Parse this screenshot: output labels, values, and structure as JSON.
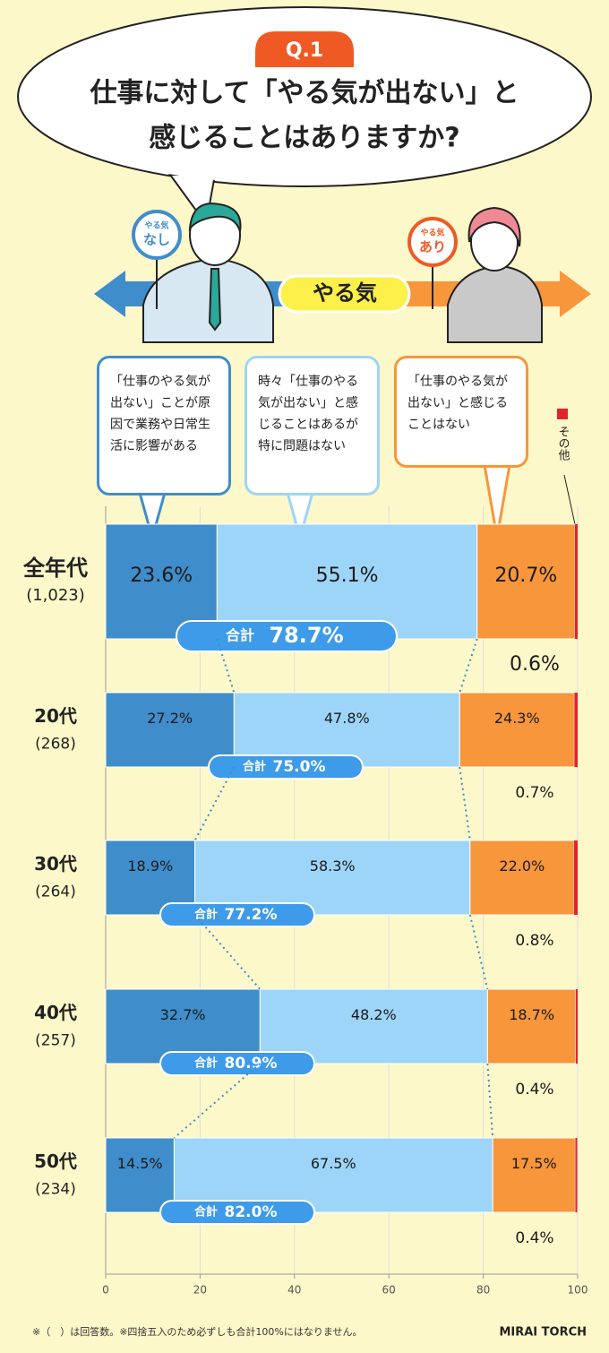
{
  "header": {
    "question": "Q.1",
    "title": [
      "仕事に対して「やる気が出ない」と",
      "感じることはありますか?"
    ]
  },
  "illustration": {
    "arrow_label": "やる気",
    "left_sign": [
      "やる気",
      "なし"
    ],
    "right_sign": [
      "やる気",
      "あり"
    ]
  },
  "chart_data": {
    "type": "stacked-bar-horizontal",
    "categories": [
      "全年代",
      "20代",
      "30代",
      "40代",
      "50代"
    ],
    "sample_sizes": [
      "(1,023)",
      "(268)",
      "(264)",
      "(257)",
      "(234)"
    ],
    "series": [
      {
        "name": "「仕事のやる気が出ない」ことが原因で業務や日常生活に影響がある",
        "color": "#3f8dcb",
        "values": [
          23.6,
          27.2,
          18.9,
          32.7,
          14.5
        ],
        "value_labels": [
          "23.6%",
          "27.2%",
          "18.9%",
          "32.7%",
          "14.5%"
        ]
      },
      {
        "name": "時々「仕事のやる気が出ない」と感じることはあるが特に問題はない",
        "color": "#9dd5f8",
        "values": [
          55.1,
          47.8,
          58.3,
          48.2,
          67.5
        ],
        "value_labels": [
          "55.1%",
          "47.8%",
          "58.3%",
          "48.2%",
          "67.5%"
        ]
      },
      {
        "name": "「仕事のやる気が出ない」と感じることはない",
        "color": "#f7963a",
        "values": [
          20.7,
          24.3,
          22.0,
          18.7,
          17.5
        ],
        "value_labels": [
          "20.7%",
          "24.3%",
          "22.0%",
          "18.7%",
          "17.5%"
        ]
      },
      {
        "name": "その他",
        "color": "#e3232b",
        "values": [
          0.6,
          0.7,
          0.8,
          0.4,
          0.4
        ],
        "value_labels": [
          "0.6%",
          "0.7%",
          "0.8%",
          "0.4%",
          "0.4%"
        ]
      }
    ],
    "totals": {
      "label": "合計",
      "values": [
        78.7,
        75.0,
        77.2,
        80.9,
        82.0
      ],
      "value_labels": [
        "78.7%",
        "75.0%",
        "77.2%",
        "80.9%",
        "82.0%"
      ]
    },
    "xlim": [
      0,
      100
    ],
    "xticks": [
      0,
      20,
      40,
      60,
      80,
      100
    ],
    "grid": true
  },
  "footnote": "※（　）は回答数。※四捨五入のため必ずしも合計100%にはなりません。",
  "logo": "MIRAI TORCH"
}
